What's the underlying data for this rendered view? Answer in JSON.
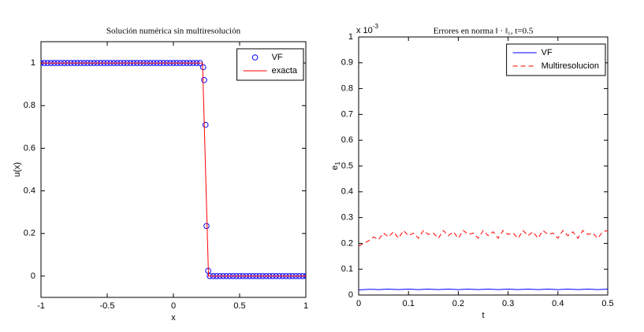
{
  "chart_data": [
    {
      "type": "line",
      "title": "Solución numérica sin multiresolución",
      "xlabel": "x",
      "ylabel": "u(x)",
      "xlim": [
        -1,
        1
      ],
      "xticks": [
        -1,
        -0.5,
        0,
        0.5,
        1
      ],
      "ylim": [
        -0.1,
        1.1
      ],
      "yticks": [
        0,
        0.2,
        0.4,
        0.6,
        0.8,
        1
      ],
      "legend": "northeast",
      "series": [
        {
          "name": "VF",
          "color": "#0000ff",
          "marker": "circle",
          "line": "none",
          "x": [
            -1,
            -0.975,
            -0.95,
            -0.925,
            -0.9,
            -0.875,
            -0.85,
            -0.825,
            -0.8,
            -0.775,
            -0.75,
            -0.725,
            -0.7,
            -0.675,
            -0.65,
            -0.625,
            -0.6,
            -0.575,
            -0.55,
            -0.525,
            -0.5,
            -0.475,
            -0.45,
            -0.425,
            -0.4,
            -0.375,
            -0.35,
            -0.325,
            -0.3,
            -0.275,
            -0.25,
            -0.225,
            -0.2,
            -0.175,
            -0.15,
            -0.125,
            -0.1,
            -0.075,
            -0.05,
            -0.025,
            0,
            0.025,
            0.05,
            0.075,
            0.1,
            0.125,
            0.15,
            0.175,
            0.2,
            0.225,
            0.2325,
            0.2425,
            0.25,
            0.2625,
            0.275,
            0.3,
            0.325,
            0.35,
            0.375,
            0.4,
            0.425,
            0.45,
            0.475,
            0.5,
            0.525,
            0.55,
            0.575,
            0.6,
            0.625,
            0.65,
            0.675,
            0.7,
            0.725,
            0.75,
            0.775,
            0.8,
            0.825,
            0.85,
            0.875,
            0.9,
            0.925,
            0.95,
            0.975,
            1
          ],
          "values": [
            1,
            1,
            1,
            1,
            1,
            1,
            1,
            1,
            1,
            1,
            1,
            1,
            1,
            1,
            1,
            1,
            1,
            1,
            1,
            1,
            1,
            1,
            1,
            1,
            1,
            1,
            1,
            1,
            1,
            1,
            1,
            1,
            1,
            1,
            1,
            1,
            1,
            1,
            1,
            1,
            1,
            1,
            1,
            1,
            1,
            1,
            1,
            1,
            1,
            0.98,
            0.92,
            0.71,
            0.235,
            0.025,
            0,
            0,
            0,
            0,
            0,
            0,
            0,
            0,
            0,
            0,
            0,
            0,
            0,
            0,
            0,
            0,
            0,
            0,
            0,
            0,
            0,
            0,
            0,
            0,
            0,
            0,
            0,
            0,
            0,
            0
          ]
        },
        {
          "name": "exacta",
          "color": "#ff0000",
          "marker": "none",
          "line": "solid",
          "x": [
            -1,
            0.22,
            0.265,
            1
          ],
          "values": [
            1,
            1,
            0,
            0
          ]
        }
      ]
    },
    {
      "type": "line",
      "title": "Errores en norma ‖ · ‖₁, t=0.5",
      "xlabel": "t",
      "ylabel": {
        "base": "e",
        "subscript": "1"
      },
      "y_multiplier": {
        "base": "x 10",
        "exponent": "-3"
      },
      "xlim": [
        0,
        0.5
      ],
      "xticks": [
        0,
        0.1,
        0.2,
        0.3,
        0.4,
        0.5
      ],
      "ylim": [
        0,
        1
      ],
      "yticks": [
        0,
        0.1,
        0.2,
        0.3,
        0.4,
        0.5,
        0.6,
        0.7,
        0.8,
        0.9,
        1
      ],
      "legend": "northeast",
      "x": [
        0,
        0.01,
        0.02,
        0.03,
        0.04,
        0.05,
        0.06,
        0.07,
        0.08,
        0.09,
        0.1,
        0.11,
        0.12,
        0.13,
        0.14,
        0.15,
        0.16,
        0.17,
        0.18,
        0.19,
        0.2,
        0.21,
        0.22,
        0.23,
        0.24,
        0.25,
        0.26,
        0.27,
        0.28,
        0.29,
        0.3,
        0.31,
        0.32,
        0.33,
        0.34,
        0.35,
        0.36,
        0.37,
        0.38,
        0.39,
        0.4,
        0.41,
        0.42,
        0.43,
        0.44,
        0.45,
        0.46,
        0.47,
        0.48,
        0.49,
        0.5
      ],
      "series": [
        {
          "name": "VF",
          "color": "#0000ff",
          "marker": "none",
          "line": "solid",
          "values": [
            0.02,
            0.021,
            0.022,
            0.022,
            0.021,
            0.022,
            0.023,
            0.022,
            0.021,
            0.022,
            0.023,
            0.022,
            0.021,
            0.022,
            0.023,
            0.022,
            0.021,
            0.022,
            0.023,
            0.022,
            0.021,
            0.022,
            0.023,
            0.022,
            0.021,
            0.022,
            0.023,
            0.022,
            0.021,
            0.022,
            0.023,
            0.022,
            0.021,
            0.022,
            0.023,
            0.022,
            0.021,
            0.022,
            0.023,
            0.022,
            0.021,
            0.022,
            0.023,
            0.022,
            0.021,
            0.022,
            0.023,
            0.022,
            0.021,
            0.022,
            0.023
          ]
        },
        {
          "name": "Multiresolucion",
          "color": "#ff0000",
          "marker": "none",
          "line": "dashed",
          "values": [
            0.19,
            0.2,
            0.21,
            0.225,
            0.215,
            0.24,
            0.225,
            0.245,
            0.22,
            0.25,
            0.23,
            0.24,
            0.22,
            0.25,
            0.235,
            0.24,
            0.22,
            0.25,
            0.23,
            0.245,
            0.22,
            0.25,
            0.235,
            0.24,
            0.22,
            0.25,
            0.23,
            0.245,
            0.22,
            0.25,
            0.235,
            0.24,
            0.22,
            0.25,
            0.23,
            0.245,
            0.22,
            0.25,
            0.235,
            0.24,
            0.22,
            0.25,
            0.23,
            0.245,
            0.22,
            0.25,
            0.235,
            0.24,
            0.22,
            0.245,
            0.25
          ]
        }
      ]
    }
  ]
}
